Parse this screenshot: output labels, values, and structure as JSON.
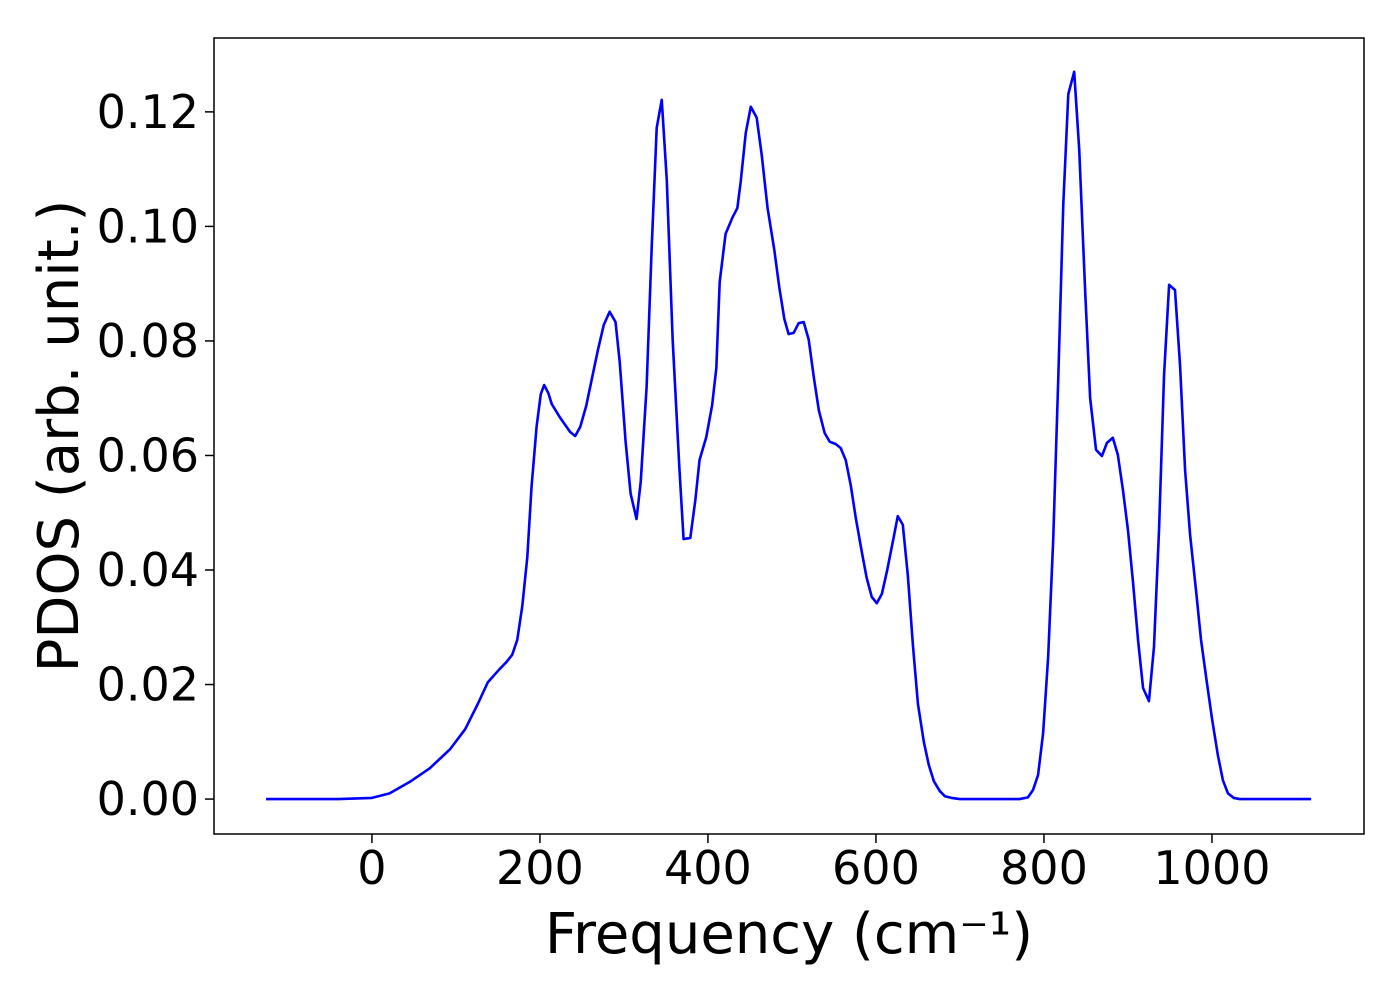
{
  "chart_data": {
    "type": "line",
    "x_label": "Frequency (cm⁻¹)",
    "y_label": "PDOS (arb. unit.)",
    "xlim": [
      -188,
      1181
    ],
    "ylim": [
      -0.0061,
      0.1329
    ],
    "xticks": [
      0,
      200,
      400,
      600,
      800,
      1000
    ],
    "yticks": [
      {
        "value": 0,
        "label": "0.00"
      },
      0.02,
      0.04,
      0.06,
      0.08,
      {
        "value": 0.1,
        "label": "0.10"
      },
      0.12
    ],
    "grid": false,
    "series": [
      {
        "color": "#0000ff",
        "x": [
          -126,
          -40,
          0,
          21,
          45,
          69,
          93,
          111,
          126,
          138,
          152,
          160,
          167,
          173,
          179,
          185,
          190,
          196,
          201,
          205,
          210,
          214,
          224,
          236,
          242,
          248,
          255,
          262,
          269,
          276,
          283,
          290,
          295,
          302,
          308,
          315,
          320,
          327,
          333,
          339,
          345,
          351,
          358,
          366,
          371,
          379,
          385,
          390,
          398,
          405,
          410,
          414,
          421,
          429,
          435,
          439,
          445,
          451,
          458,
          464,
          471,
          479,
          485,
          491,
          496,
          502,
          508,
          514,
          520,
          526,
          532,
          539,
          545,
          552,
          558,
          564,
          570,
          576,
          583,
          589,
          595,
          601,
          607,
          613,
          621,
          626,
          632,
          638,
          644,
          650,
          657,
          663,
          669,
          676,
          682,
          690,
          700,
          771,
          781,
          787,
          793,
          799,
          805,
          811,
          817,
          823,
          829,
          836,
          842,
          849,
          855,
          862,
          869,
          875,
          882,
          888,
          894,
          900,
          906,
          912,
          918,
          925,
          931,
          937,
          943,
          949,
          956,
          962,
          968,
          974,
          981,
          987,
          994,
          1000,
          1007,
          1013,
          1019,
          1026,
          1033,
          1118
        ],
        "values": [
          0,
          0,
          0.0002,
          0.001,
          0.003,
          0.0054,
          0.0087,
          0.0122,
          0.0166,
          0.0204,
          0.0227,
          0.0239,
          0.0252,
          0.0278,
          0.0337,
          0.0423,
          0.0545,
          0.065,
          0.0707,
          0.0723,
          0.0709,
          0.069,
          0.0666,
          0.0641,
          0.0634,
          0.065,
          0.0686,
          0.0735,
          0.0784,
          0.0828,
          0.0851,
          0.0833,
          0.0763,
          0.0624,
          0.0533,
          0.0489,
          0.0554,
          0.072,
          0.0962,
          0.1172,
          0.1221,
          0.1081,
          0.0802,
          0.0578,
          0.0454,
          0.0456,
          0.0522,
          0.0592,
          0.0632,
          0.0688,
          0.0753,
          0.0903,
          0.0987,
          0.1015,
          0.1032,
          0.1078,
          0.1163,
          0.1209,
          0.119,
          0.1125,
          0.1032,
          0.0959,
          0.0893,
          0.0838,
          0.0812,
          0.0814,
          0.0831,
          0.0833,
          0.0802,
          0.0737,
          0.0679,
          0.0639,
          0.0624,
          0.062,
          0.0613,
          0.0592,
          0.0548,
          0.0491,
          0.0433,
          0.0386,
          0.0353,
          0.0342,
          0.0358,
          0.0397,
          0.0456,
          0.0494,
          0.0479,
          0.039,
          0.0269,
          0.0166,
          0.01,
          0.0059,
          0.0031,
          0.0014,
          0.0005,
          0.0002,
          0,
          0,
          0.0003,
          0.0016,
          0.0042,
          0.0115,
          0.0248,
          0.0452,
          0.0732,
          0.1038,
          0.1231,
          0.127,
          0.1134,
          0.0889,
          0.07,
          0.061,
          0.0599,
          0.0622,
          0.0631,
          0.0601,
          0.054,
          0.047,
          0.0379,
          0.0278,
          0.0194,
          0.0171,
          0.0266,
          0.047,
          0.0741,
          0.0898,
          0.0889,
          0.0758,
          0.0575,
          0.0461,
          0.0365,
          0.0278,
          0.0203,
          0.0141,
          0.0077,
          0.0033,
          0.001,
          0.0002,
          0,
          0
        ]
      }
    ]
  }
}
